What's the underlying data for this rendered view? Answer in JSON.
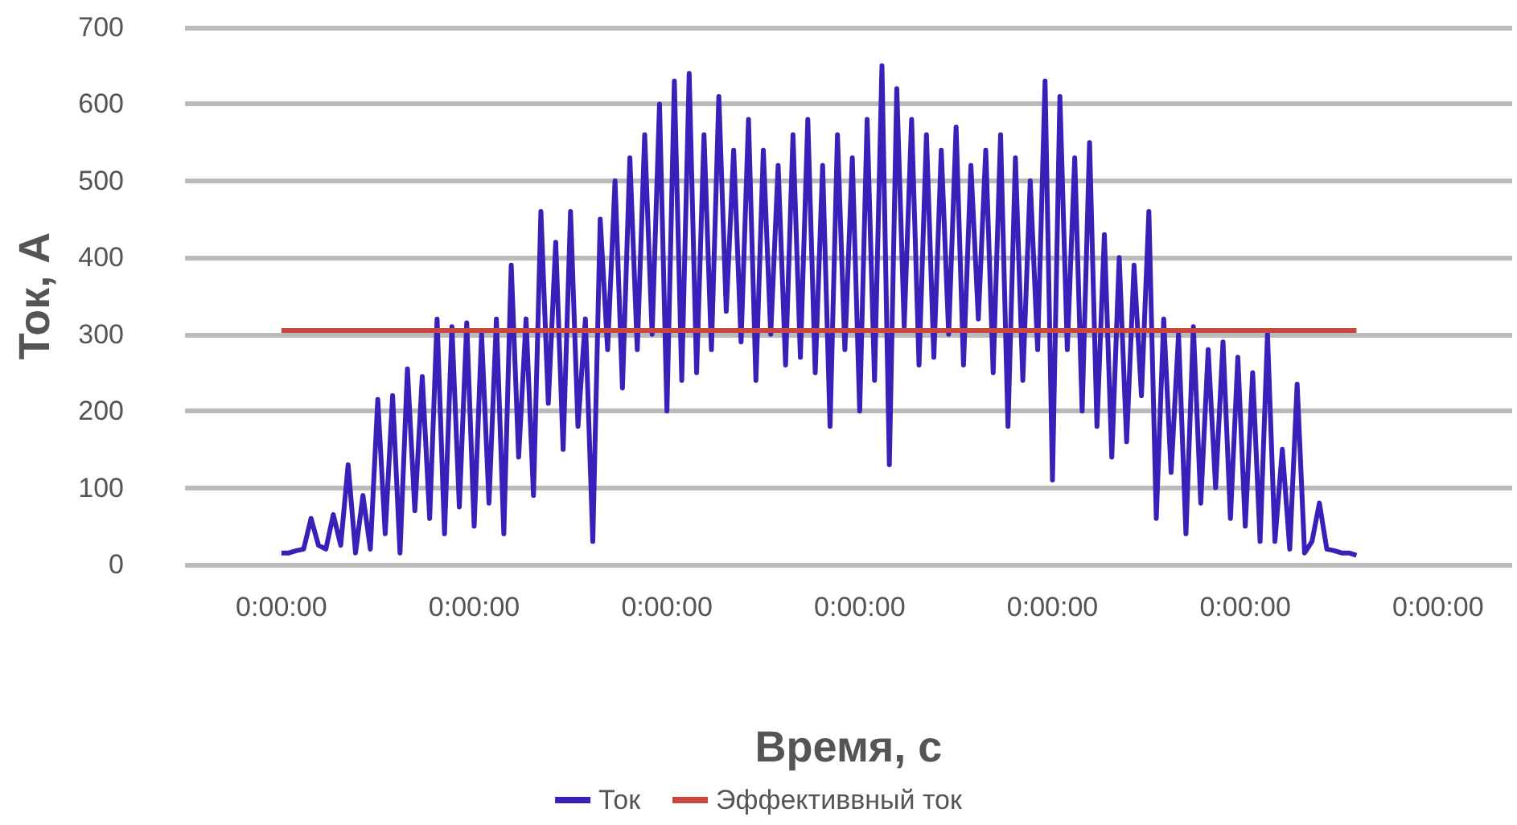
{
  "chart_data": {
    "type": "line",
    "xlabel": "Время, с",
    "ylabel": "Ток, А",
    "categories": [
      null,
      null,
      null,
      null,
      null,
      null,
      null,
      null,
      null,
      null,
      null,
      null,
      null,
      "0:00:00",
      null,
      null,
      null,
      null,
      null,
      null,
      null,
      null,
      null,
      null,
      null,
      null,
      null,
      null,
      null,
      null,
      null,
      null,
      null,
      null,
      null,
      null,
      null,
      null,
      null,
      "0:00:00",
      null,
      null,
      null,
      null,
      null,
      null,
      null,
      null,
      null,
      null,
      null,
      null,
      null,
      null,
      null,
      null,
      null,
      null,
      null,
      null,
      null,
      null,
      null,
      null,
      null,
      "0:00:00",
      null,
      null,
      null,
      null,
      null,
      null,
      null,
      null,
      null,
      null,
      null,
      null,
      null,
      null,
      null,
      null,
      null,
      null,
      null,
      null,
      null,
      null,
      null,
      null,
      null,
      "0:00:00",
      null,
      null,
      null,
      null,
      null,
      null,
      null,
      null,
      null,
      null,
      null,
      null,
      null,
      null,
      null,
      null,
      null,
      null,
      null,
      null,
      null,
      null,
      null,
      null,
      null,
      "0:00:00",
      null,
      null,
      null,
      null,
      null,
      null,
      null,
      null,
      null,
      null,
      null,
      null,
      null,
      null,
      null,
      null,
      null,
      null,
      null,
      null,
      null,
      null,
      null,
      null,
      null,
      "0:00:00",
      null,
      null,
      null,
      null,
      null,
      null,
      null,
      null,
      null,
      null,
      null,
      null,
      null,
      null,
      null,
      null,
      null,
      null,
      null,
      null,
      null,
      null,
      null,
      null,
      null,
      "0:00:00",
      null,
      null,
      null,
      null,
      null,
      null,
      null,
      null,
      null,
      null
    ],
    "ylim": [
      0,
      700
    ],
    "yticks": [
      0,
      100,
      200,
      300,
      400,
      500,
      600,
      700
    ],
    "grid": "y",
    "legend": "bottom",
    "marker": "none",
    "line_style": "solid",
    "series": [
      {
        "name": "Ток",
        "color": "#3a1fb8",
        "values": [
          null,
          null,
          null,
          null,
          null,
          null,
          null,
          null,
          null,
          null,
          null,
          null,
          null,
          15,
          15,
          18,
          20,
          60,
          25,
          20,
          65,
          25,
          130,
          15,
          90,
          20,
          215,
          40,
          220,
          15,
          255,
          70,
          245,
          60,
          320,
          40,
          310,
          75,
          315,
          50,
          300,
          80,
          320,
          40,
          390,
          140,
          320,
          90,
          460,
          210,
          420,
          150,
          460,
          180,
          320,
          30,
          450,
          280,
          500,
          230,
          530,
          280,
          560,
          300,
          600,
          200,
          630,
          240,
          640,
          250,
          560,
          280,
          610,
          330,
          540,
          290,
          580,
          240,
          540,
          300,
          520,
          260,
          560,
          270,
          580,
          250,
          520,
          180,
          560,
          280,
          530,
          200,
          580,
          240,
          650,
          130,
          620,
          310,
          580,
          260,
          560,
          270,
          540,
          300,
          570,
          260,
          520,
          320,
          540,
          250,
          560,
          180,
          530,
          240,
          500,
          280,
          630,
          110,
          610,
          280,
          530,
          200,
          550,
          180,
          430,
          140,
          400,
          160,
          390,
          220,
          460,
          60,
          320,
          120,
          300,
          40,
          310,
          80,
          280,
          100,
          290,
          60,
          270,
          50,
          250,
          30,
          300,
          30,
          150,
          20,
          235,
          15,
          30,
          80,
          20,
          18,
          15,
          15,
          12,
          null,
          null,
          null,
          null,
          null,
          null,
          null,
          null,
          null,
          null,
          null,
          null,
          null,
          null,
          null,
          null,
          null,
          null,
          null,
          null,
          null
        ]
      },
      {
        "name": "Эффективвный ток",
        "color": "#c9473f",
        "values": [
          null,
          null,
          null,
          null,
          null,
          null,
          null,
          null,
          null,
          null,
          null,
          null,
          null,
          305,
          305,
          305,
          305,
          305,
          305,
          305,
          305,
          305,
          305,
          305,
          305,
          305,
          305,
          305,
          305,
          305,
          305,
          305,
          305,
          305,
          305,
          305,
          305,
          305,
          305,
          305,
          305,
          305,
          305,
          305,
          305,
          305,
          305,
          305,
          305,
          305,
          305,
          305,
          305,
          305,
          305,
          305,
          305,
          305,
          305,
          305,
          305,
          305,
          305,
          305,
          305,
          305,
          305,
          305,
          305,
          305,
          305,
          305,
          305,
          305,
          305,
          305,
          305,
          305,
          305,
          305,
          305,
          305,
          305,
          305,
          305,
          305,
          305,
          305,
          305,
          305,
          305,
          305,
          305,
          305,
          305,
          305,
          305,
          305,
          305,
          305,
          305,
          305,
          305,
          305,
          305,
          305,
          305,
          305,
          305,
          305,
          305,
          305,
          305,
          305,
          305,
          305,
          305,
          305,
          305,
          305,
          305,
          305,
          305,
          305,
          305,
          305,
          305,
          305,
          305,
          305,
          305,
          305,
          305,
          305,
          305,
          305,
          305,
          305,
          305,
          305,
          305,
          305,
          305,
          305,
          305,
          305,
          305,
          305,
          305,
          305,
          305,
          305,
          305,
          305,
          305,
          305,
          305,
          305,
          305,
          null,
          null,
          null,
          null,
          null,
          null,
          null,
          null,
          null,
          null,
          null,
          null,
          null,
          null,
          null,
          null,
          null,
          null,
          null,
          null,
          null
        ]
      }
    ]
  }
}
